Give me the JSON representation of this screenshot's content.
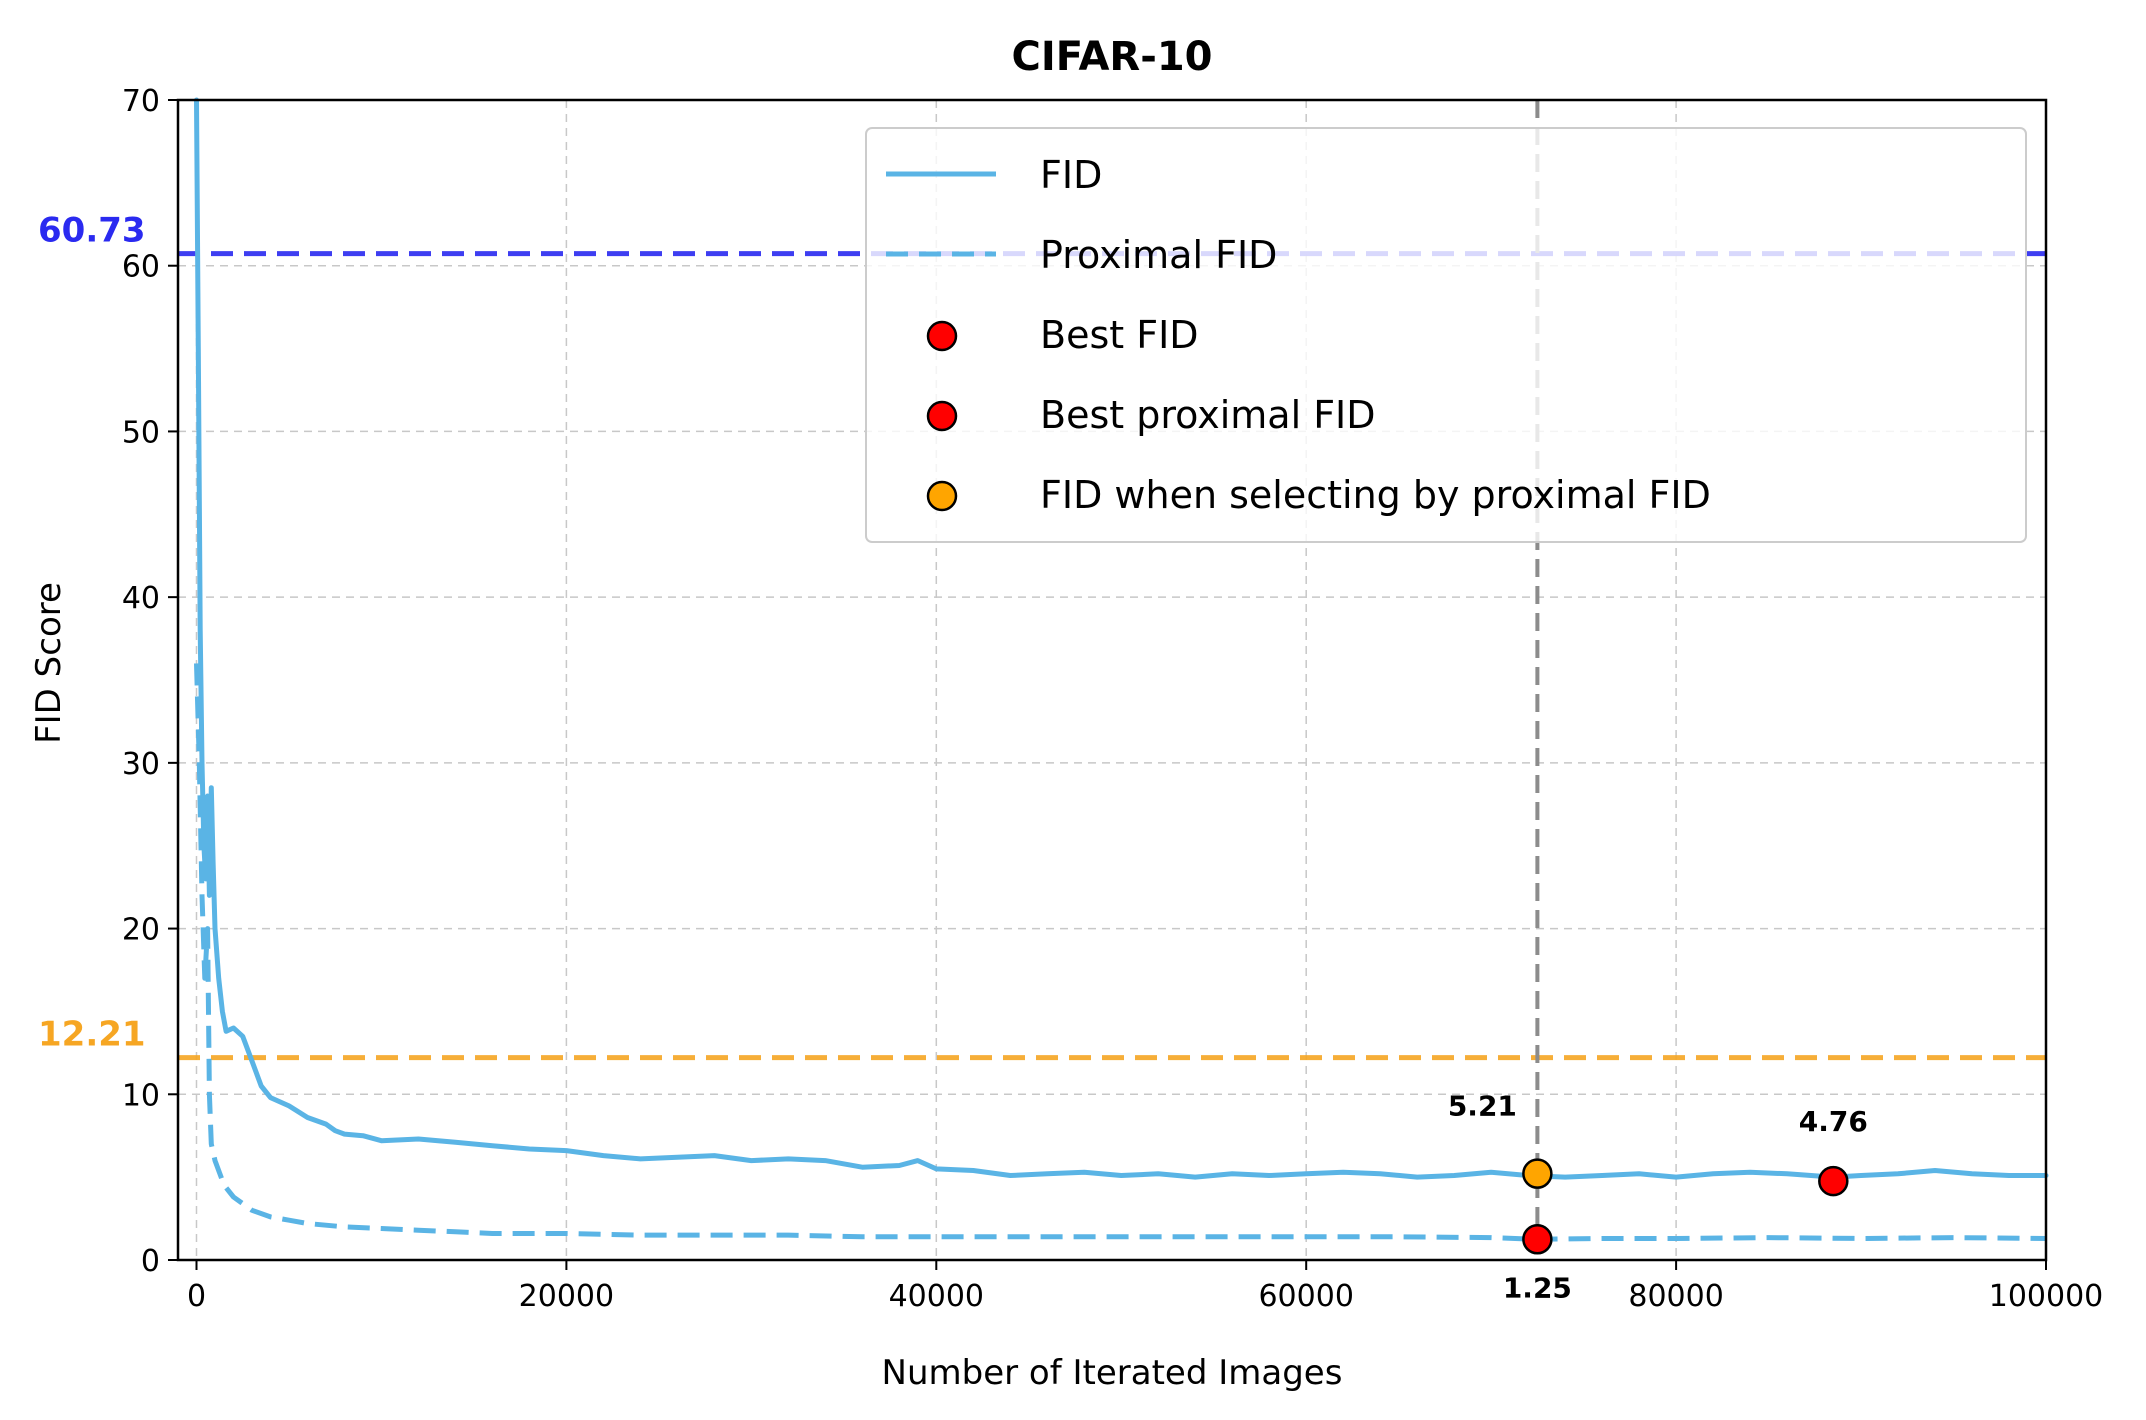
{
  "chart_data": {
    "type": "line",
    "title": "CIFAR-10",
    "xlabel": "Number of Iterated Images",
    "ylabel": "FID Score",
    "xlim": [
      -1000,
      100000
    ],
    "ylim": [
      0,
      70
    ],
    "grid": true,
    "legend_position": "upper right",
    "x_ticks": [
      0,
      20000,
      40000,
      60000,
      80000,
      100000
    ],
    "x_tick_labels": [
      "0",
      "20000",
      "40000",
      "60000",
      "80000",
      "100000"
    ],
    "y_ticks": [
      0,
      10,
      20,
      30,
      40,
      50,
      60,
      70
    ],
    "y_tick_labels": [
      "0",
      "10",
      "20",
      "30",
      "40",
      "50",
      "60",
      "70"
    ],
    "series": [
      {
        "name": "FID",
        "style": "solid",
        "color": "#5ab4e5",
        "points": [
          [
            0,
            70
          ],
          [
            100,
            55
          ],
          [
            200,
            38
          ],
          [
            300,
            30
          ],
          [
            400,
            25
          ],
          [
            500,
            23
          ],
          [
            600,
            28
          ],
          [
            700,
            22
          ],
          [
            800,
            28.5
          ],
          [
            900,
            24
          ],
          [
            1000,
            20
          ],
          [
            1200,
            17
          ],
          [
            1400,
            15
          ],
          [
            1600,
            13.8
          ],
          [
            2000,
            14
          ],
          [
            2500,
            13.5
          ],
          [
            3000,
            12
          ],
          [
            3500,
            10.5
          ],
          [
            4000,
            9.8
          ],
          [
            5000,
            9.3
          ],
          [
            6000,
            8.6
          ],
          [
            7000,
            8.2
          ],
          [
            7500,
            7.8
          ],
          [
            8000,
            7.6
          ],
          [
            9000,
            7.5
          ],
          [
            10000,
            7.2
          ],
          [
            12000,
            7.3
          ],
          [
            14000,
            7.1
          ],
          [
            16000,
            6.9
          ],
          [
            18000,
            6.7
          ],
          [
            20000,
            6.6
          ],
          [
            22000,
            6.3
          ],
          [
            24000,
            6.1
          ],
          [
            26000,
            6.2
          ],
          [
            28000,
            6.3
          ],
          [
            30000,
            6.0
          ],
          [
            32000,
            6.1
          ],
          [
            34000,
            6.0
          ],
          [
            36000,
            5.6
          ],
          [
            38000,
            5.7
          ],
          [
            39000,
            6.0
          ],
          [
            40000,
            5.5
          ],
          [
            42000,
            5.4
          ],
          [
            44000,
            5.1
          ],
          [
            46000,
            5.2
          ],
          [
            48000,
            5.3
          ],
          [
            50000,
            5.1
          ],
          [
            52000,
            5.2
          ],
          [
            54000,
            5.0
          ],
          [
            56000,
            5.2
          ],
          [
            58000,
            5.1
          ],
          [
            60000,
            5.2
          ],
          [
            62000,
            5.3
          ],
          [
            64000,
            5.2
          ],
          [
            66000,
            5.0
          ],
          [
            68000,
            5.1
          ],
          [
            70000,
            5.3
          ],
          [
            72000,
            5.1
          ],
          [
            74000,
            5.0
          ],
          [
            76000,
            5.1
          ],
          [
            78000,
            5.2
          ],
          [
            80000,
            5.0
          ],
          [
            82000,
            5.2
          ],
          [
            84000,
            5.3
          ],
          [
            86000,
            5.2
          ],
          [
            88500,
            5.0
          ],
          [
            90000,
            5.1
          ],
          [
            92000,
            5.2
          ],
          [
            94000,
            5.4
          ],
          [
            96000,
            5.2
          ],
          [
            98000,
            5.1
          ],
          [
            100000,
            5.1
          ]
        ]
      },
      {
        "name": "Proximal FID",
        "style": "dashed",
        "color": "#5ab4e5",
        "points": [
          [
            0,
            36
          ],
          [
            150,
            30
          ],
          [
            300,
            22
          ],
          [
            450,
            17
          ],
          [
            600,
            20
          ],
          [
            700,
            10
          ],
          [
            800,
            7
          ],
          [
            1000,
            6
          ],
          [
            1500,
            4.5
          ],
          [
            2000,
            3.8
          ],
          [
            3000,
            3.0
          ],
          [
            4000,
            2.6
          ],
          [
            5000,
            2.4
          ],
          [
            6000,
            2.2
          ],
          [
            8000,
            2.0
          ],
          [
            10000,
            1.9
          ],
          [
            12000,
            1.8
          ],
          [
            14000,
            1.7
          ],
          [
            16000,
            1.6
          ],
          [
            20000,
            1.6
          ],
          [
            24000,
            1.5
          ],
          [
            28000,
            1.5
          ],
          [
            32000,
            1.5
          ],
          [
            36000,
            1.4
          ],
          [
            40000,
            1.4
          ],
          [
            45000,
            1.4
          ],
          [
            50000,
            1.4
          ],
          [
            55000,
            1.4
          ],
          [
            60000,
            1.4
          ],
          [
            65000,
            1.4
          ],
          [
            70000,
            1.35
          ],
          [
            72500,
            1.25
          ],
          [
            76000,
            1.3
          ],
          [
            80000,
            1.3
          ],
          [
            85000,
            1.35
          ],
          [
            90000,
            1.3
          ],
          [
            95000,
            1.35
          ],
          [
            100000,
            1.3
          ]
        ]
      }
    ],
    "reference_lines": [
      {
        "orientation": "horizontal",
        "y": 60.73,
        "label": "60.73",
        "color": "#2a2af0",
        "style": "dashed"
      },
      {
        "orientation": "horizontal",
        "y": 12.21,
        "label": "12.21",
        "color": "#f6a623",
        "style": "dashed"
      },
      {
        "orientation": "vertical",
        "x": 72500,
        "color": "#8c8c8c",
        "style": "dashed"
      }
    ],
    "markers": [
      {
        "name": "Best FID",
        "x": 88500,
        "y": 4.76,
        "label": "4.76",
        "color": "#ff0000",
        "label_pos": "above"
      },
      {
        "name": "Best proximal FID",
        "x": 72500,
        "y": 1.25,
        "label": "1.25",
        "color": "#ff0000",
        "label_pos": "below"
      },
      {
        "name": "FID when selecting by proximal FID",
        "x": 72500,
        "y": 5.21,
        "label": "5.21",
        "color": "#ffa500",
        "label_pos": "above-left"
      }
    ],
    "legend": [
      {
        "label": "FID",
        "kind": "line-solid",
        "color": "#5ab4e5"
      },
      {
        "label": "Proximal FID",
        "kind": "line-dashed",
        "color": "#5ab4e5"
      },
      {
        "label": "Best FID",
        "kind": "marker",
        "color": "#ff0000"
      },
      {
        "label": "Best proximal FID",
        "kind": "marker",
        "color": "#ff0000"
      },
      {
        "label": "FID when selecting by proximal FID",
        "kind": "marker",
        "color": "#ffa500"
      }
    ]
  }
}
